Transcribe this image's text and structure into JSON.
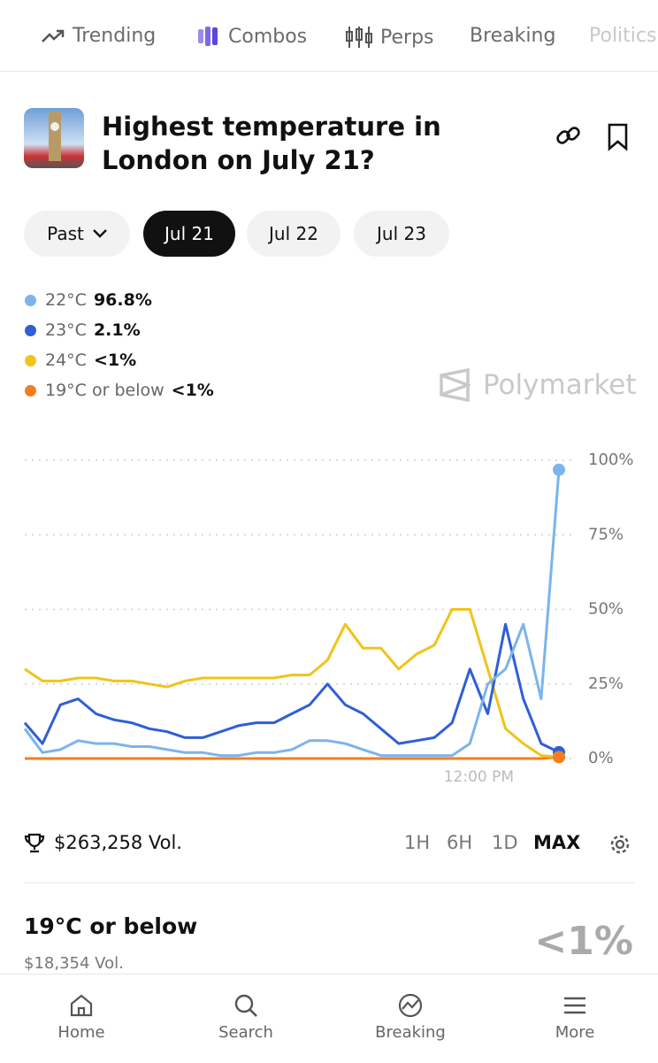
{
  "nav_tabs": [
    "Trending",
    "Combos",
    "Perps",
    "Breaking",
    "Politics"
  ],
  "header": {
    "title": "Highest temperature in London on July 21?"
  },
  "date_tabs": [
    "Past",
    "Jul 21",
    "Jul 22",
    "Jul 23"
  ],
  "watermark": "Polymarket",
  "chart_data": {
    "type": "line",
    "x": [
      0,
      2,
      4,
      6,
      8,
      10,
      12,
      14,
      16,
      18,
      20,
      22,
      24,
      26,
      28,
      30,
      32,
      34,
      36,
      38,
      40,
      42,
      44,
      46,
      48,
      50,
      52,
      54,
      56,
      58,
      60
    ],
    "xlim": [
      0,
      60
    ],
    "xticks": [
      {
        "value": 51,
        "label": "12:00 PM"
      }
    ],
    "ylim": [
      0,
      100
    ],
    "yticks": [
      {
        "value": 0,
        "label": "0%"
      },
      {
        "value": 25,
        "label": "25%"
      },
      {
        "value": 50,
        "label": "50%"
      },
      {
        "value": 75,
        "label": "75%"
      },
      {
        "value": 100,
        "label": "100%"
      }
    ],
    "grid": true,
    "series": [
      {
        "name": "22°C",
        "color": "#7cb4ec",
        "current_label": "96.8%",
        "values": [
          10,
          2,
          3,
          6,
          5,
          5,
          4,
          4,
          3,
          2,
          2,
          1,
          1,
          2,
          2,
          3,
          6,
          6,
          5,
          3,
          1,
          1,
          1,
          1,
          1,
          5,
          25,
          30,
          45,
          20,
          96.8
        ]
      },
      {
        "name": "23°C",
        "color": "#2f5fd6",
        "current_label": "2.1%",
        "values": [
          12,
          5,
          18,
          20,
          15,
          13,
          12,
          10,
          9,
          7,
          7,
          9,
          11,
          12,
          12,
          15,
          18,
          25,
          18,
          15,
          10,
          5,
          6,
          7,
          12,
          30,
          15,
          45,
          20,
          5,
          2.1
        ]
      },
      {
        "name": "24°C",
        "color": "#f0c419",
        "current_label": "<1%",
        "values": [
          30,
          26,
          26,
          27,
          27,
          26,
          26,
          25,
          24,
          26,
          27,
          27,
          27,
          27,
          27,
          28,
          28,
          33,
          45,
          37,
          37,
          30,
          35,
          38,
          50,
          50,
          30,
          10,
          5,
          1,
          0.5
        ]
      },
      {
        "name": "19°C or below",
        "color": "#f57c1f",
        "current_label": "<1%",
        "values": [
          0,
          0,
          0,
          0,
          0,
          0,
          0,
          0,
          0,
          0,
          0,
          0,
          0,
          0,
          0,
          0,
          0,
          0,
          0,
          0,
          0,
          0,
          0,
          0,
          0,
          0,
          0,
          0,
          0,
          0,
          0.5
        ]
      }
    ]
  },
  "volume": "$263,258 Vol.",
  "ranges": [
    "1H",
    "6H",
    "1D",
    "MAX"
  ],
  "market": {
    "name": "19°C or below",
    "volume": "$18,354 Vol.",
    "chance": "<1%"
  },
  "bottom_nav": [
    "Home",
    "Search",
    "Breaking",
    "More"
  ]
}
